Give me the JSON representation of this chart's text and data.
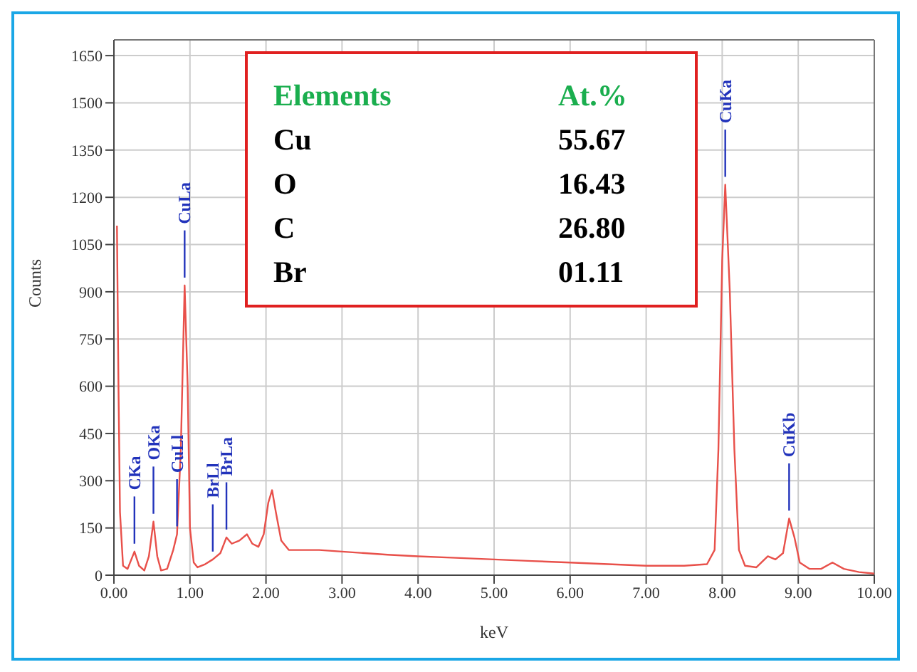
{
  "chart_data": {
    "type": "line",
    "xlabel": "keV",
    "ylabel": "Counts",
    "xlim": [
      0,
      10
    ],
    "ylim": [
      0,
      1700
    ],
    "xticks": [
      {
        "value": 0,
        "label": "0.00"
      },
      {
        "value": 1,
        "label": "1.00"
      },
      {
        "value": 2,
        "label": "2.00"
      },
      {
        "value": 3,
        "label": "3.00"
      },
      {
        "value": 4,
        "label": "4.00"
      },
      {
        "value": 5,
        "label": "5.00"
      },
      {
        "value": 6,
        "label": "6.00"
      },
      {
        "value": 7,
        "label": "7.00"
      },
      {
        "value": 8,
        "label": "8.00"
      },
      {
        "value": 9,
        "label": "9.00"
      },
      {
        "value": 10,
        "label": "10.00"
      }
    ],
    "yticks": [
      0,
      150,
      300,
      450,
      600,
      750,
      900,
      1050,
      1200,
      1350,
      1500,
      1650
    ],
    "grid": true,
    "legend": false,
    "marker": "none",
    "line_style": "solid",
    "x": [
      0.04,
      0.06,
      0.08,
      0.12,
      0.18,
      0.27,
      0.33,
      0.4,
      0.46,
      0.52,
      0.57,
      0.62,
      0.7,
      0.78,
      0.83,
      0.88,
      0.93,
      0.97,
      1.0,
      1.05,
      1.1,
      1.2,
      1.3,
      1.4,
      1.48,
      1.55,
      1.65,
      1.75,
      1.82,
      1.9,
      1.97,
      2.03,
      2.08,
      2.13,
      2.2,
      2.3,
      2.5,
      2.7,
      3.0,
      3.3,
      3.6,
      4.0,
      4.5,
      5.0,
      5.5,
      6.0,
      6.5,
      7.0,
      7.5,
      7.8,
      7.9,
      7.95,
      8.0,
      8.04,
      8.1,
      8.16,
      8.22,
      8.3,
      8.45,
      8.6,
      8.7,
      8.8,
      8.88,
      8.95,
      9.02,
      9.15,
      9.3,
      9.45,
      9.6,
      9.8,
      10.0
    ],
    "series": [
      {
        "color": "#e8504a",
        "values": [
          1110,
          600,
          200,
          30,
          20,
          75,
          30,
          15,
          60,
          170,
          60,
          15,
          20,
          80,
          130,
          400,
          920,
          600,
          150,
          40,
          25,
          35,
          50,
          70,
          120,
          100,
          110,
          130,
          100,
          90,
          130,
          230,
          270,
          200,
          110,
          80,
          80,
          80,
          75,
          70,
          65,
          60,
          55,
          50,
          45,
          40,
          35,
          30,
          30,
          35,
          80,
          400,
          1000,
          1240,
          900,
          400,
          80,
          30,
          25,
          60,
          50,
          70,
          180,
          120,
          40,
          20,
          20,
          40,
          20,
          10,
          5
        ]
      }
    ],
    "annotations": [
      "Elements",
      "At.%",
      "Cu",
      "55.67",
      "O",
      "16.43",
      "C",
      "26.80",
      "Br",
      "01.11",
      {
        "text": "CKa",
        "x": 0.27,
        "y": 75
      },
      {
        "text": "OKa",
        "x": 0.52,
        "y": 170
      },
      {
        "text": "CuLl",
        "x": 0.83,
        "y": 130
      },
      {
        "text": "CuLa",
        "x": 0.93,
        "y": 920
      },
      {
        "text": "BrLl",
        "x": 1.3,
        "y": 50
      },
      {
        "text": "BrLa",
        "x": 1.48,
        "y": 120
      },
      {
        "text": "CuKa",
        "x": 8.04,
        "y": 1240
      },
      {
        "text": "CuKb",
        "x": 8.88,
        "y": 180
      }
    ]
  }
}
